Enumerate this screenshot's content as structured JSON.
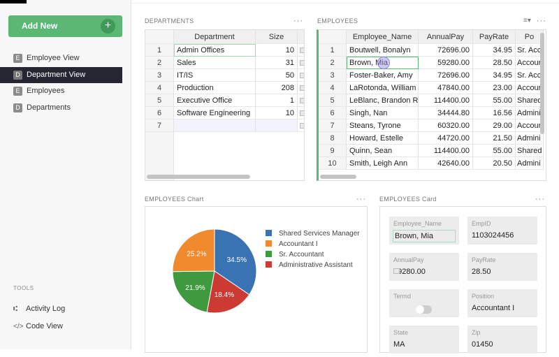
{
  "sidebar": {
    "add_new": "Add New",
    "items": [
      {
        "badge": "E",
        "label": "Employee View"
      },
      {
        "badge": "D",
        "label": "Department View",
        "active": true
      },
      {
        "badge": "E",
        "label": "Employees"
      },
      {
        "badge": "D",
        "label": "Departments"
      }
    ],
    "tools_title": "TOOLS",
    "tools": [
      {
        "icon": "activity-log-icon",
        "glyph": "⑆",
        "label": "Activity Log"
      },
      {
        "icon": "code-icon",
        "glyph": "</>",
        "label": "Code View"
      }
    ]
  },
  "departments": {
    "title": "DEPARTMENTS",
    "columns": [
      "Department",
      "Size"
    ],
    "rows": [
      [
        "1",
        "Admin Offices",
        "10"
      ],
      [
        "2",
        "Sales",
        "31"
      ],
      [
        "3",
        "IT/IS",
        "50"
      ],
      [
        "4",
        "Production",
        "208"
      ],
      [
        "5",
        "Executive Office",
        "1"
      ],
      [
        "6",
        "Software Engineering",
        "10"
      ],
      [
        "7",
        "",
        ""
      ]
    ]
  },
  "employees": {
    "title": "EMPLOYEES",
    "columns": [
      "Employee_Name",
      "AnnualPay",
      "PayRate",
      "Po"
    ],
    "rows": [
      [
        "1",
        "Boutwell, Bonalyn",
        "72696.00",
        "34.95",
        "Sr. Acc"
      ],
      [
        "2",
        "Brown, Mia",
        "59280.00",
        "28.50",
        "Accour"
      ],
      [
        "3",
        "Foster-Baker, Amy",
        "72696.00",
        "34.95",
        "Sr. Acc"
      ],
      [
        "4",
        "LaRotonda, William",
        "47840.00",
        "23.00",
        "Accour"
      ],
      [
        "5",
        "LeBlanc, Brandon R",
        "114400.00",
        "55.00",
        "Shared"
      ],
      [
        "6",
        "Singh, Nan",
        "34444.80",
        "16.56",
        "Admini"
      ],
      [
        "7",
        "Steans, Tyrone",
        "60320.00",
        "29.00",
        "Accour"
      ],
      [
        "8",
        "Howard, Estelle",
        "44720.00",
        "21.50",
        "Admini"
      ],
      [
        "9",
        "Quinn, Sean",
        "114400.00",
        "55.00",
        "Shared"
      ],
      [
        "10",
        "Smith, Leigh Ann",
        "42640.00",
        "20.50",
        "Admini"
      ]
    ]
  },
  "chart": {
    "title": "EMPLOYEES Chart"
  },
  "chart_data": {
    "type": "pie",
    "series": [
      {
        "name": "Shared Services Manager",
        "value": 34.5,
        "label": "34.5%",
        "color": "#3a73b3"
      },
      {
        "name": "Administrative Assistant",
        "value": 18.4,
        "label": "18.4%",
        "color": "#cc3b33"
      },
      {
        "name": "Sr. Accountant",
        "value": 21.9,
        "label": "21.9%",
        "color": "#3f9a3f"
      },
      {
        "name": "Accountant I",
        "value": 25.2,
        "label": "25.2%",
        "color": "#ef8a2f"
      }
    ],
    "legend_order": [
      0,
      3,
      2,
      1
    ],
    "legend": "right"
  },
  "card": {
    "title": "EMPLOYEES Card",
    "fields": [
      {
        "label": "Employee_Name",
        "value": "Brown, Mia"
      },
      {
        "label": "EmpID",
        "value": "1103024456"
      },
      {
        "label": "AnnualPay",
        "value": "59280.00"
      },
      {
        "label": "PayRate",
        "value": "28.50"
      },
      {
        "label": "Termd",
        "value": false
      },
      {
        "label": "Position",
        "value": "Accountant I"
      },
      {
        "label": "State",
        "value": "MA"
      },
      {
        "label": "Zip",
        "value": "01450"
      }
    ]
  }
}
